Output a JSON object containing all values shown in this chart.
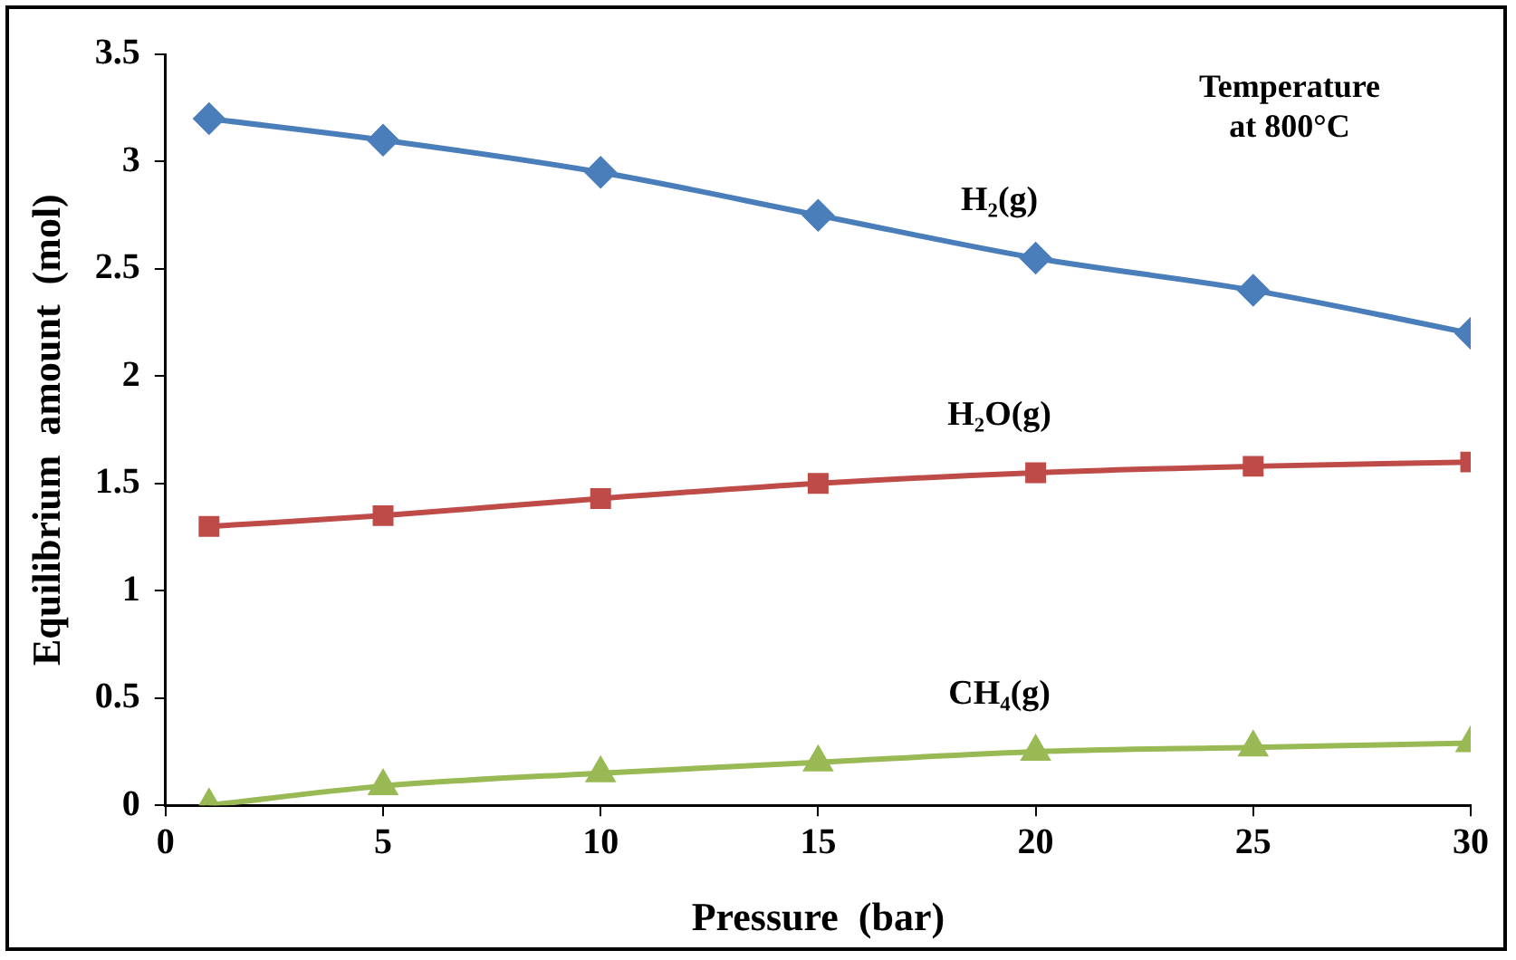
{
  "chart_data": {
    "type": "line",
    "xlabel": "Pressure  (bar)",
    "ylabel": "Equilibrium  amount  (mol)",
    "x": [
      1,
      5,
      10,
      15,
      20,
      25,
      30
    ],
    "series": [
      {
        "name": "H₂(g)",
        "color": "#4a7ebb",
        "marker": "diamond",
        "values": [
          3.2,
          3.1,
          2.95,
          2.75,
          2.55,
          2.4,
          2.2
        ]
      },
      {
        "name": "H₂O(g)",
        "color": "#be4b48",
        "marker": "square",
        "values": [
          1.3,
          1.35,
          1.43,
          1.5,
          1.55,
          1.58,
          1.6
        ]
      },
      {
        "name": "CH₄(g)",
        "color": "#98b954",
        "marker": "triangle",
        "values": [
          0,
          0.09,
          0.15,
          0.2,
          0.25,
          0.27,
          0.29
        ]
      }
    ],
    "xlim": [
      0,
      30
    ],
    "xticks": [
      0,
      5,
      10,
      15,
      20,
      25,
      30
    ],
    "ylim": [
      0,
      3.5
    ],
    "yticks": [
      0,
      0.5,
      1,
      1.5,
      2,
      2.5,
      3,
      3.5
    ],
    "grid": false,
    "legend": false,
    "annotations": [
      "Temperature at 800°C"
    ]
  }
}
